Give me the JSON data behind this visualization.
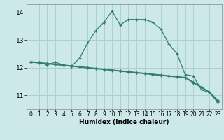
{
  "xlabel": "Humidex (Indice chaleur)",
  "background_color": "#cce8e8",
  "grid_color": "#aacccc",
  "line_color": "#2e7d6e",
  "xlim": [
    -0.5,
    23.5
  ],
  "ylim": [
    10.5,
    14.3
  ],
  "yticks": [
    11,
    12,
    13,
    14
  ],
  "xticks": [
    0,
    1,
    2,
    3,
    4,
    5,
    6,
    7,
    8,
    9,
    10,
    11,
    12,
    13,
    14,
    15,
    16,
    17,
    18,
    19,
    20,
    21,
    22,
    23
  ],
  "curve1_x": [
    0,
    1,
    2,
    3,
    4,
    5,
    6,
    7,
    8,
    9,
    10,
    11,
    12,
    13,
    14,
    15,
    16,
    17,
    18,
    19,
    20,
    21,
    22,
    23
  ],
  "curve1_y": [
    12.2,
    12.2,
    12.1,
    12.2,
    12.1,
    12.05,
    12.35,
    12.9,
    13.35,
    13.65,
    14.05,
    13.55,
    13.75,
    13.75,
    13.75,
    13.65,
    13.4,
    12.85,
    12.5,
    11.75,
    11.7,
    11.2,
    11.1,
    10.75
  ],
  "curve2_x": [
    0,
    1,
    2,
    3,
    4,
    5,
    6,
    7,
    8,
    9,
    10,
    11,
    12,
    13,
    14,
    15,
    16,
    17,
    18,
    19,
    20,
    21,
    22,
    23
  ],
  "curve2_y": [
    12.2,
    12.17,
    12.14,
    12.11,
    12.08,
    12.05,
    12.02,
    11.99,
    11.96,
    11.93,
    11.9,
    11.87,
    11.84,
    11.81,
    11.78,
    11.75,
    11.72,
    11.69,
    11.66,
    11.63,
    11.45,
    11.28,
    11.1,
    10.8
  ],
  "curve3_x": [
    0,
    1,
    2,
    3,
    4,
    5,
    6,
    7,
    8,
    9,
    10,
    11,
    12,
    13,
    14,
    15,
    16,
    17,
    18,
    19,
    20,
    21,
    22,
    23
  ],
  "curve3_y": [
    12.22,
    12.19,
    12.16,
    12.13,
    12.1,
    12.07,
    12.04,
    12.01,
    11.98,
    11.95,
    11.92,
    11.89,
    11.86,
    11.83,
    11.8,
    11.77,
    11.74,
    11.71,
    11.68,
    11.65,
    11.48,
    11.3,
    11.12,
    10.83
  ]
}
